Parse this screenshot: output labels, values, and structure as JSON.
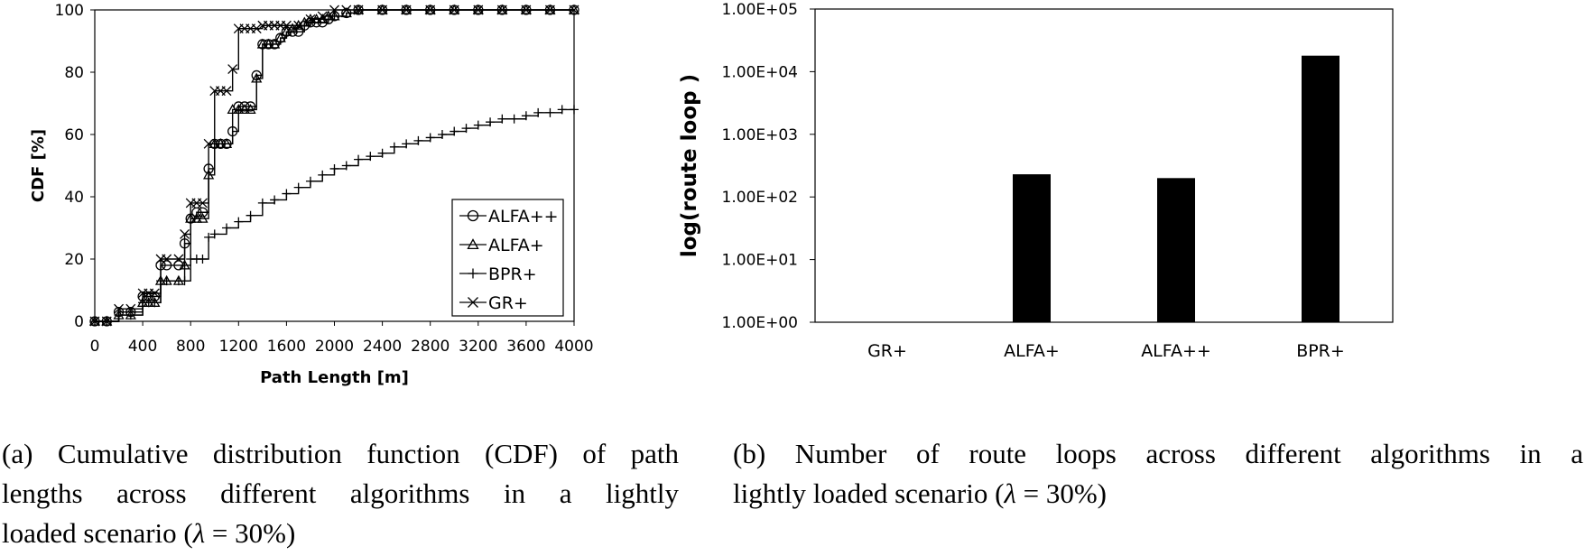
{
  "charts": [
    {
      "type": "line",
      "xlabel": "Path Length [m]",
      "ylabel": "CDF [%]",
      "xlim": [
        0,
        4000
      ],
      "ylim": [
        0,
        100
      ],
      "xticks": [
        "0",
        "400",
        "800",
        "1200",
        "1600",
        "2000",
        "2400",
        "2800",
        "3200",
        "3600",
        "4000"
      ],
      "yticks": [
        "0",
        "20",
        "40",
        "60",
        "80",
        "100"
      ],
      "grid": false,
      "legend_position": "bottom-right",
      "series": [
        {
          "name": "ALFA++",
          "marker": "circle",
          "x": [
            0,
            100,
            200,
            300,
            400,
            450,
            500,
            550,
            600,
            700,
            750,
            800,
            850,
            900,
            950,
            1000,
            1050,
            1100,
            1150,
            1200,
            1250,
            1300,
            1350,
            1400,
            1450,
            1500,
            1550,
            1600,
            1650,
            1700,
            1750,
            1800,
            1850,
            1900,
            1950,
            2000,
            2100,
            2200,
            2400,
            2600,
            2800,
            3000,
            3200,
            3400,
            3600,
            3800,
            4000
          ],
          "y": [
            0,
            0,
            3,
            3,
            8,
            8,
            8,
            18,
            18,
            18,
            25,
            33,
            35,
            35,
            49,
            57,
            57,
            57,
            61,
            69,
            69,
            69,
            79,
            89,
            89,
            89,
            91,
            93,
            93,
            93,
            95,
            96,
            96,
            96,
            97,
            98,
            99,
            100,
            100,
            100,
            100,
            100,
            100,
            100,
            100,
            100,
            100
          ]
        },
        {
          "name": "ALFA+",
          "marker": "triangle",
          "x": [
            0,
            100,
            200,
            300,
            400,
            450,
            500,
            550,
            600,
            700,
            750,
            800,
            850,
            900,
            950,
            1000,
            1050,
            1100,
            1150,
            1200,
            1250,
            1300,
            1350,
            1400,
            1450,
            1500,
            1550,
            1600,
            1650,
            1700,
            1750,
            1800,
            1850,
            1900,
            1950,
            2000,
            2100,
            2200,
            2400,
            2600,
            2800,
            3000,
            3200,
            3400,
            3600,
            3800,
            4000
          ],
          "y": [
            0,
            0,
            2,
            2,
            6,
            6,
            6,
            13,
            13,
            13,
            18,
            33,
            33,
            33,
            47,
            57,
            57,
            57,
            68,
            68,
            68,
            68,
            78,
            89,
            89,
            89,
            91,
            93,
            94,
            95,
            96,
            97,
            97,
            97,
            98,
            98,
            99,
            100,
            100,
            100,
            100,
            100,
            100,
            100,
            100,
            100,
            100
          ]
        },
        {
          "name": "BPR+",
          "marker": "plus",
          "x": [
            0,
            100,
            200,
            300,
            400,
            450,
            500,
            550,
            600,
            700,
            750,
            800,
            850,
            900,
            950,
            1000,
            1100,
            1200,
            1300,
            1400,
            1500,
            1600,
            1700,
            1800,
            1900,
            2000,
            2100,
            2200,
            2300,
            2400,
            2500,
            2600,
            2700,
            2800,
            2900,
            3000,
            3100,
            3200,
            3300,
            3400,
            3500,
            3600,
            3700,
            3800,
            3900,
            4000
          ],
          "y": [
            0,
            0,
            2,
            2,
            6,
            6,
            6,
            13,
            13,
            13,
            13,
            20,
            20,
            20,
            27,
            28,
            30,
            32,
            34,
            38,
            39,
            41,
            43,
            45,
            47,
            49,
            50,
            52,
            53,
            54,
            56,
            57,
            58,
            59,
            60,
            61,
            62,
            63,
            64,
            65,
            65,
            66,
            67,
            67,
            68,
            68
          ]
        },
        {
          "name": "GR+",
          "marker": "x",
          "x": [
            0,
            100,
            200,
            300,
            400,
            450,
            500,
            550,
            600,
            700,
            750,
            800,
            850,
            900,
            950,
            1000,
            1050,
            1100,
            1150,
            1200,
            1250,
            1300,
            1350,
            1400,
            1450,
            1500,
            1550,
            1600,
            1700,
            1800,
            1900,
            2000,
            2100,
            2200,
            2400,
            2600,
            2800,
            3000,
            3200,
            3400,
            3600,
            3800,
            4000
          ],
          "y": [
            0,
            0,
            4,
            4,
            9,
            9,
            9,
            20,
            20,
            20,
            28,
            38,
            38,
            38,
            57,
            74,
            74,
            74,
            81,
            94,
            94,
            94,
            94,
            95,
            95,
            95,
            95,
            95,
            95,
            97,
            98,
            100,
            100,
            100,
            100,
            100,
            100,
            100,
            100,
            100,
            100,
            100,
            100
          ]
        }
      ]
    },
    {
      "type": "bar",
      "ylabel": "log(route loop )",
      "yscale": "log",
      "ylim": [
        1,
        100000
      ],
      "yticks": [
        "1.00E+00",
        "1.00E+01",
        "1.00E+02",
        "1.00E+03",
        "1.00E+04",
        "1.00E+05"
      ],
      "grid": false,
      "categories": [
        "GR+",
        "ALFA+",
        "ALFA++",
        "BPR+"
      ],
      "values": [
        1,
        230,
        200,
        18000
      ],
      "bar_color": "#000000"
    }
  ],
  "captions": {
    "a_lines": [
      "(a) Cumulative distribution function (CDF) of path",
      "lengths across different algorithms in a lightly",
      "loaded scenario ("
    ],
    "b_lines": [
      "(b) Number of route loops across different algorithms in a",
      "lightly loaded scenario ("
    ],
    "lambda_symbol": "λ",
    "lambda_value": " = 30%)"
  }
}
